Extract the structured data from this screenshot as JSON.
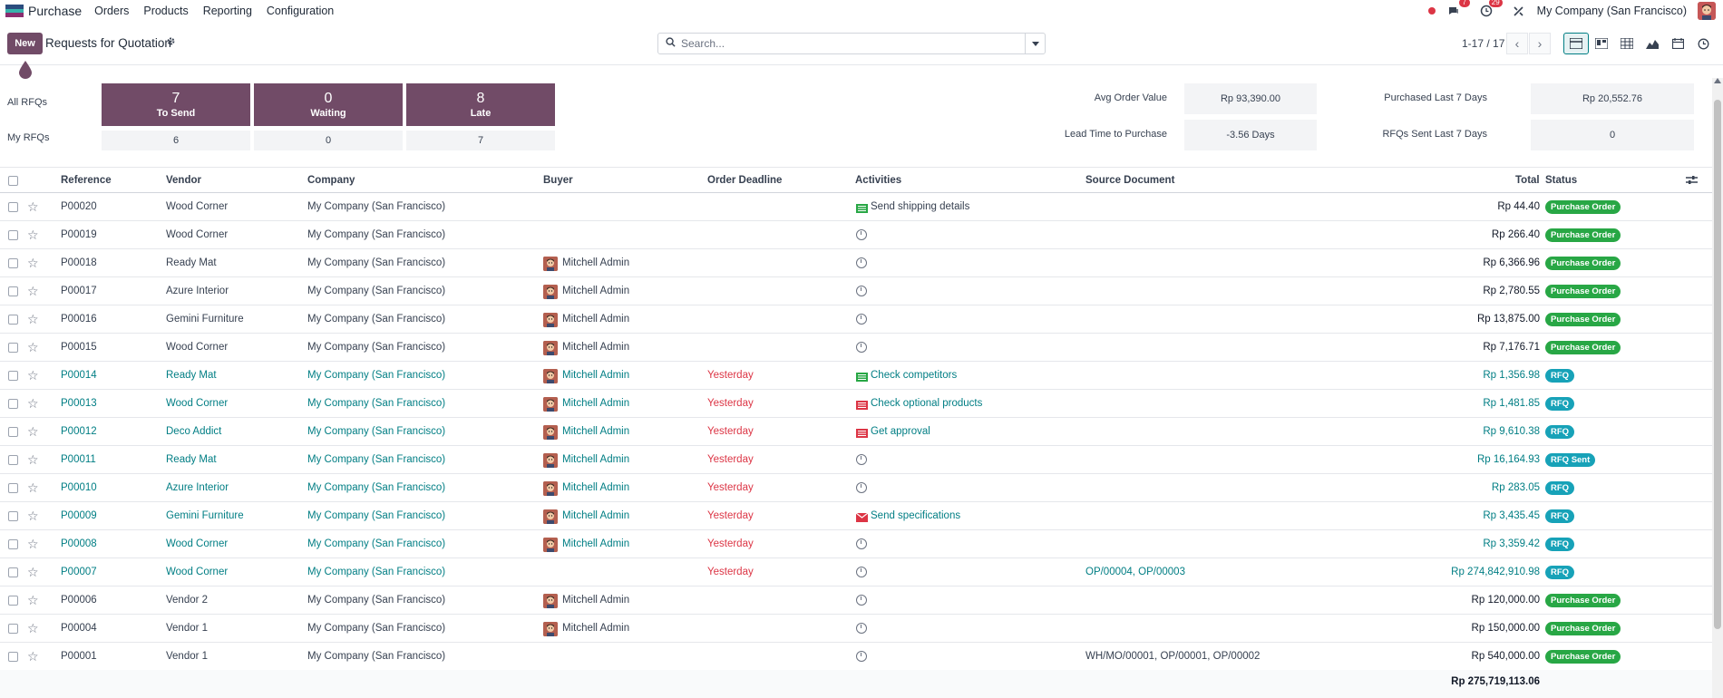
{
  "navbar": {
    "app_name": "Purchase",
    "menu": [
      "Orders",
      "Products",
      "Reporting",
      "Configuration"
    ],
    "chat_count": "7",
    "activity_count": "29",
    "company": "My Company (San Francisco)"
  },
  "control": {
    "new_label": "New",
    "title": "Requests for Quotation",
    "search_placeholder": "Search...",
    "pager": "1-17 / 17"
  },
  "dashboard": {
    "all_rfqs_label": "All RFQs",
    "my_rfqs_label": "My RFQs",
    "tiles": [
      {
        "count": "7",
        "label": "To Send",
        "mine": "6"
      },
      {
        "count": "0",
        "label": "Waiting",
        "mine": "0"
      },
      {
        "count": "8",
        "label": "Late",
        "mine": "7"
      }
    ],
    "kpis": {
      "avg_order_value_label": "Avg Order Value",
      "avg_order_value": "Rp 93,390.00",
      "lead_time_label": "Lead Time to Purchase",
      "lead_time": "-3.56 Days",
      "purchased_7d_label": "Purchased Last 7 Days",
      "purchased_7d": "Rp 20,552.76",
      "rfqs_sent_7d_label": "RFQs Sent Last 7 Days",
      "rfqs_sent_7d": "0"
    }
  },
  "table": {
    "headers": {
      "reference": "Reference",
      "vendor": "Vendor",
      "company": "Company",
      "buyer": "Buyer",
      "deadline": "Order Deadline",
      "activities": "Activities",
      "source": "Source Document",
      "total": "Total",
      "status": "Status"
    },
    "rows": [
      {
        "ref": "P00020",
        "vendor": "Wood Corner",
        "company": "My Company (San Francisco)",
        "buyer": "",
        "deadline": "",
        "activity": "Send shipping details",
        "activity_icon": "todo-icon",
        "source": "",
        "total": "Rp 44.40",
        "status": "Purchase Order",
        "kind": "po"
      },
      {
        "ref": "P00019",
        "vendor": "Wood Corner",
        "company": "My Company (San Francisco)",
        "buyer": "",
        "deadline": "",
        "activity": "",
        "activity_icon": "clock-icon",
        "source": "",
        "total": "Rp 266.40",
        "status": "Purchase Order",
        "kind": "po"
      },
      {
        "ref": "P00018",
        "vendor": "Ready Mat",
        "company": "My Company (San Francisco)",
        "buyer": "Mitchell Admin",
        "deadline": "",
        "activity": "",
        "activity_icon": "clock-icon",
        "source": "",
        "total": "Rp 6,366.96",
        "status": "Purchase Order",
        "kind": "po"
      },
      {
        "ref": "P00017",
        "vendor": "Azure Interior",
        "company": "My Company (San Francisco)",
        "buyer": "Mitchell Admin",
        "deadline": "",
        "activity": "",
        "activity_icon": "clock-icon",
        "source": "",
        "total": "Rp 2,780.55",
        "status": "Purchase Order",
        "kind": "po"
      },
      {
        "ref": "P00016",
        "vendor": "Gemini Furniture",
        "company": "My Company (San Francisco)",
        "buyer": "Mitchell Admin",
        "deadline": "",
        "activity": "",
        "activity_icon": "clock-icon",
        "source": "",
        "total": "Rp 13,875.00",
        "status": "Purchase Order",
        "kind": "po"
      },
      {
        "ref": "P00015",
        "vendor": "Wood Corner",
        "company": "My Company (San Francisco)",
        "buyer": "Mitchell Admin",
        "deadline": "",
        "activity": "",
        "activity_icon": "clock-icon",
        "source": "",
        "total": "Rp 7,176.71",
        "status": "Purchase Order",
        "kind": "po"
      },
      {
        "ref": "P00014",
        "vendor": "Ready Mat",
        "company": "My Company (San Francisco)",
        "buyer": "Mitchell Admin",
        "deadline": "Yesterday",
        "activity": "Check competitors",
        "activity_icon": "todo-icon",
        "source": "",
        "total": "Rp 1,356.98",
        "status": "RFQ",
        "kind": "rfq"
      },
      {
        "ref": "P00013",
        "vendor": "Wood Corner",
        "company": "My Company (San Francisco)",
        "buyer": "Mitchell Admin",
        "deadline": "Yesterday",
        "activity": "Check optional products",
        "activity_icon": "todo-late-icon",
        "source": "",
        "total": "Rp 1,481.85",
        "status": "RFQ",
        "kind": "rfq"
      },
      {
        "ref": "P00012",
        "vendor": "Deco Addict",
        "company": "My Company (San Francisco)",
        "buyer": "Mitchell Admin",
        "deadline": "Yesterday",
        "activity": "Get approval",
        "activity_icon": "todo-late-icon",
        "source": "",
        "total": "Rp 9,610.38",
        "status": "RFQ",
        "kind": "rfq"
      },
      {
        "ref": "P00011",
        "vendor": "Ready Mat",
        "company": "My Company (San Francisco)",
        "buyer": "Mitchell Admin",
        "deadline": "Yesterday",
        "activity": "",
        "activity_icon": "clock-icon",
        "source": "",
        "total": "Rp 16,164.93",
        "status": "RFQ Sent",
        "kind": "rfq"
      },
      {
        "ref": "P00010",
        "vendor": "Azure Interior",
        "company": "My Company (San Francisco)",
        "buyer": "Mitchell Admin",
        "deadline": "Yesterday",
        "activity": "",
        "activity_icon": "clock-icon",
        "source": "",
        "total": "Rp 283.05",
        "status": "RFQ",
        "kind": "rfq"
      },
      {
        "ref": "P00009",
        "vendor": "Gemini Furniture",
        "company": "My Company (San Francisco)",
        "buyer": "Mitchell Admin",
        "deadline": "Yesterday",
        "activity": "Send specifications",
        "activity_icon": "email-late-icon",
        "source": "",
        "total": "Rp 3,435.45",
        "status": "RFQ",
        "kind": "rfq"
      },
      {
        "ref": "P00008",
        "vendor": "Wood Corner",
        "company": "My Company (San Francisco)",
        "buyer": "Mitchell Admin",
        "deadline": "Yesterday",
        "activity": "",
        "activity_icon": "clock-icon",
        "source": "",
        "total": "Rp 3,359.42",
        "status": "RFQ",
        "kind": "rfq"
      },
      {
        "ref": "P00007",
        "vendor": "Wood Corner",
        "company": "My Company (San Francisco)",
        "buyer": "",
        "deadline": "Yesterday",
        "activity": "",
        "activity_icon": "clock-icon",
        "source": "OP/00004, OP/00003",
        "total": "Rp 274,842,910.98",
        "status": "RFQ",
        "kind": "rfq"
      },
      {
        "ref": "P00006",
        "vendor": "Vendor 2",
        "company": "My Company (San Francisco)",
        "buyer": "Mitchell Admin",
        "deadline": "",
        "activity": "",
        "activity_icon": "clock-icon",
        "source": "",
        "total": "Rp 120,000.00",
        "status": "Purchase Order",
        "kind": "po"
      },
      {
        "ref": "P00004",
        "vendor": "Vendor 1",
        "company": "My Company (San Francisco)",
        "buyer": "Mitchell Admin",
        "deadline": "",
        "activity": "",
        "activity_icon": "clock-icon",
        "source": "",
        "total": "Rp 150,000.00",
        "status": "Purchase Order",
        "kind": "po"
      },
      {
        "ref": "P00001",
        "vendor": "Vendor 1",
        "company": "My Company (San Francisco)",
        "buyer": "",
        "deadline": "",
        "activity": "",
        "activity_icon": "clock-icon",
        "source": "WH/MO/00001, OP/00001, OP/00002",
        "total": "Rp 540,000.00",
        "status": "Purchase Order",
        "kind": "po"
      }
    ],
    "grand_total": "Rp 275,719,113.06"
  },
  "colors": {
    "brand": "#714b67",
    "link": "#017e84",
    "po_badge": "#28a745",
    "rfq_badge": "#17a2b8",
    "late": "#dc3545"
  }
}
